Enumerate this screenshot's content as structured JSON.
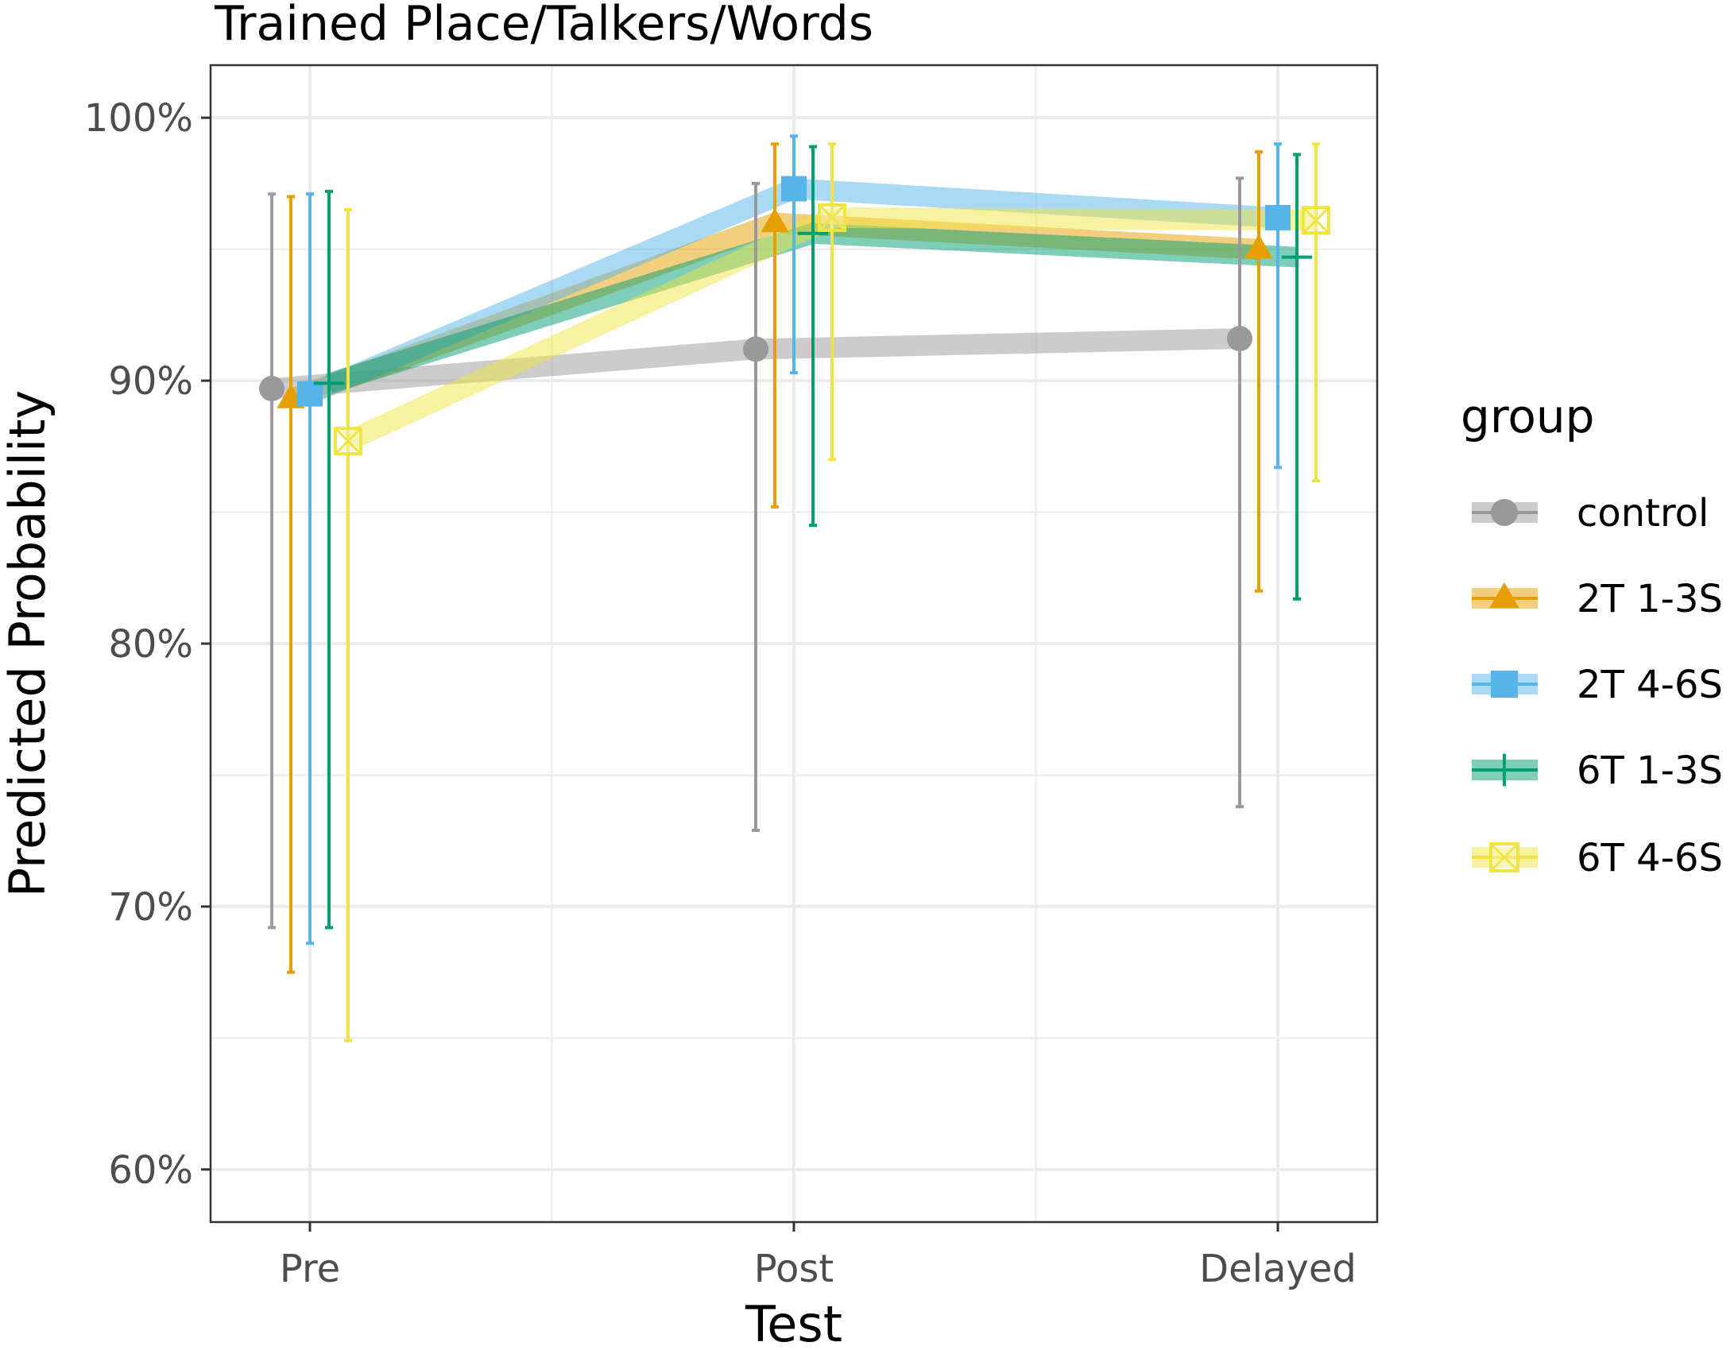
{
  "chart_data": {
    "type": "line",
    "title": "Trained Place/Talkers/Words",
    "xlabel": "Test",
    "ylabel": "Predicted Probability",
    "categories": [
      "Pre",
      "Post",
      "Delayed"
    ],
    "ylim": [
      0.58,
      1.02
    ],
    "yticks": [
      {
        "value": 0.6,
        "label": "60%"
      },
      {
        "value": 0.7,
        "label": "70%"
      },
      {
        "value": 0.8,
        "label": "80%"
      },
      {
        "value": 0.9,
        "label": "90%"
      },
      {
        "value": 1.0,
        "label": "100%"
      }
    ],
    "grid": true,
    "legend": {
      "title": "group",
      "position": "right"
    },
    "series": [
      {
        "name": "control",
        "color": "#999999",
        "whisker_color": [
          "#a39aa8",
          "#999999",
          "#999999"
        ],
        "marker": "circle",
        "values": [
          0.897,
          0.912,
          0.916
        ],
        "lower": [
          0.692,
          0.729,
          0.738
        ],
        "upper": [
          0.971,
          0.975,
          0.977
        ]
      },
      {
        "name": "2T 1-3S",
        "color": "#E69F00",
        "marker": "triangle",
        "values": [
          0.893,
          0.96,
          0.95
        ],
        "lower": [
          0.675,
          0.852,
          0.82
        ],
        "upper": [
          0.97,
          0.99,
          0.987
        ]
      },
      {
        "name": "2T 4-6S",
        "color": "#56B4E9",
        "marker": "square",
        "values": [
          0.895,
          0.973,
          0.962
        ],
        "lower": [
          0.686,
          0.903,
          0.867
        ],
        "upper": [
          0.971,
          0.993,
          0.99
        ]
      },
      {
        "name": "6T 1-3S",
        "color": "#009E73",
        "marker": "plus",
        "values": [
          0.899,
          0.956,
          0.947
        ],
        "lower": [
          0.692,
          0.845,
          0.817
        ],
        "upper": [
          0.972,
          0.989,
          0.986
        ]
      },
      {
        "name": "6T 4-6S",
        "color": "#F0E442",
        "marker": "square-x",
        "values": [
          0.877,
          0.962,
          0.961
        ],
        "lower": [
          0.649,
          0.87,
          0.862
        ],
        "upper": [
          0.965,
          0.99,
          0.99
        ]
      }
    ]
  }
}
